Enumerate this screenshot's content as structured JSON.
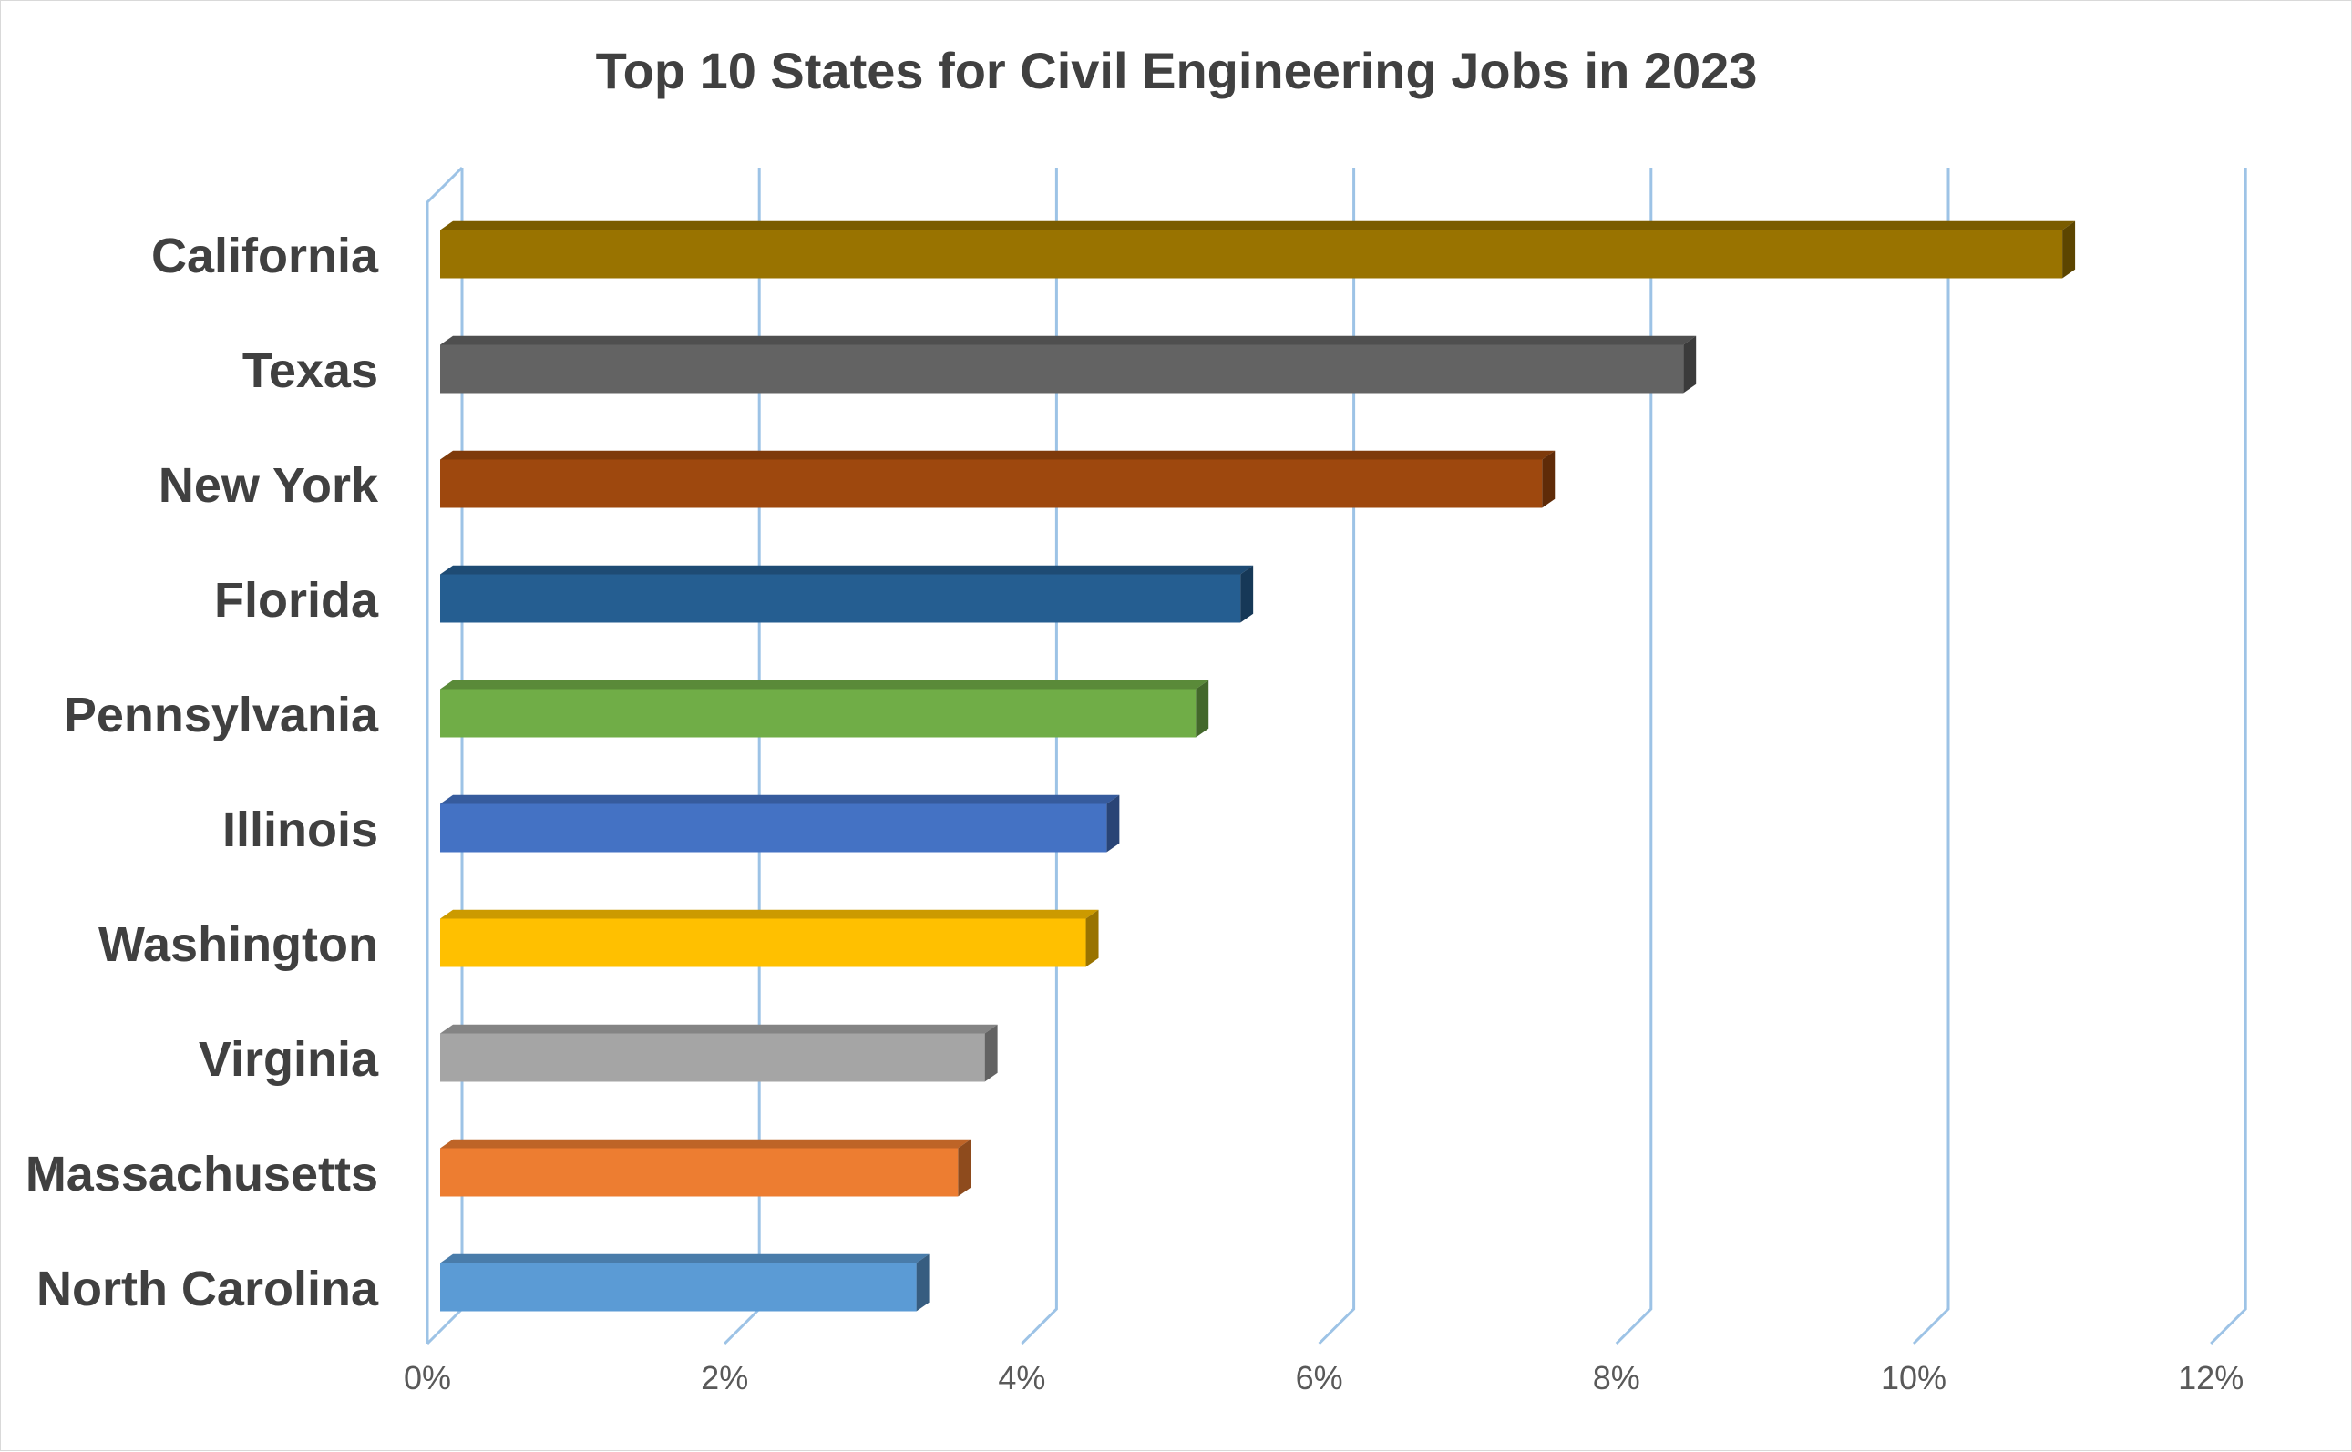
{
  "chart_data": {
    "type": "bar",
    "orientation": "horizontal",
    "title": "Top 10 States for Civil Engineering Jobs in 2023",
    "xlabel": "",
    "ylabel": "",
    "categories": [
      "California",
      "Texas",
      "New York",
      "Florida",
      "Pennsylvania",
      "Illinois",
      "Washington",
      "Virginia",
      "Massachusetts",
      "North Carolina"
    ],
    "values": [
      11.0,
      8.45,
      7.5,
      5.47,
      5.17,
      4.57,
      4.43,
      3.75,
      3.57,
      3.29
    ],
    "colors": [
      "#997300",
      "#636363",
      "#9e480e",
      "#255e91",
      "#70ad47",
      "#4472c4",
      "#ffc000",
      "#a5a5a5",
      "#ed7d31",
      "#5b9bd5"
    ],
    "xlim": [
      0,
      12
    ],
    "x_ticks": [
      "0%",
      "2%",
      "4%",
      "6%",
      "8%",
      "10%",
      "12%"
    ],
    "grid": true,
    "legend": "none"
  }
}
